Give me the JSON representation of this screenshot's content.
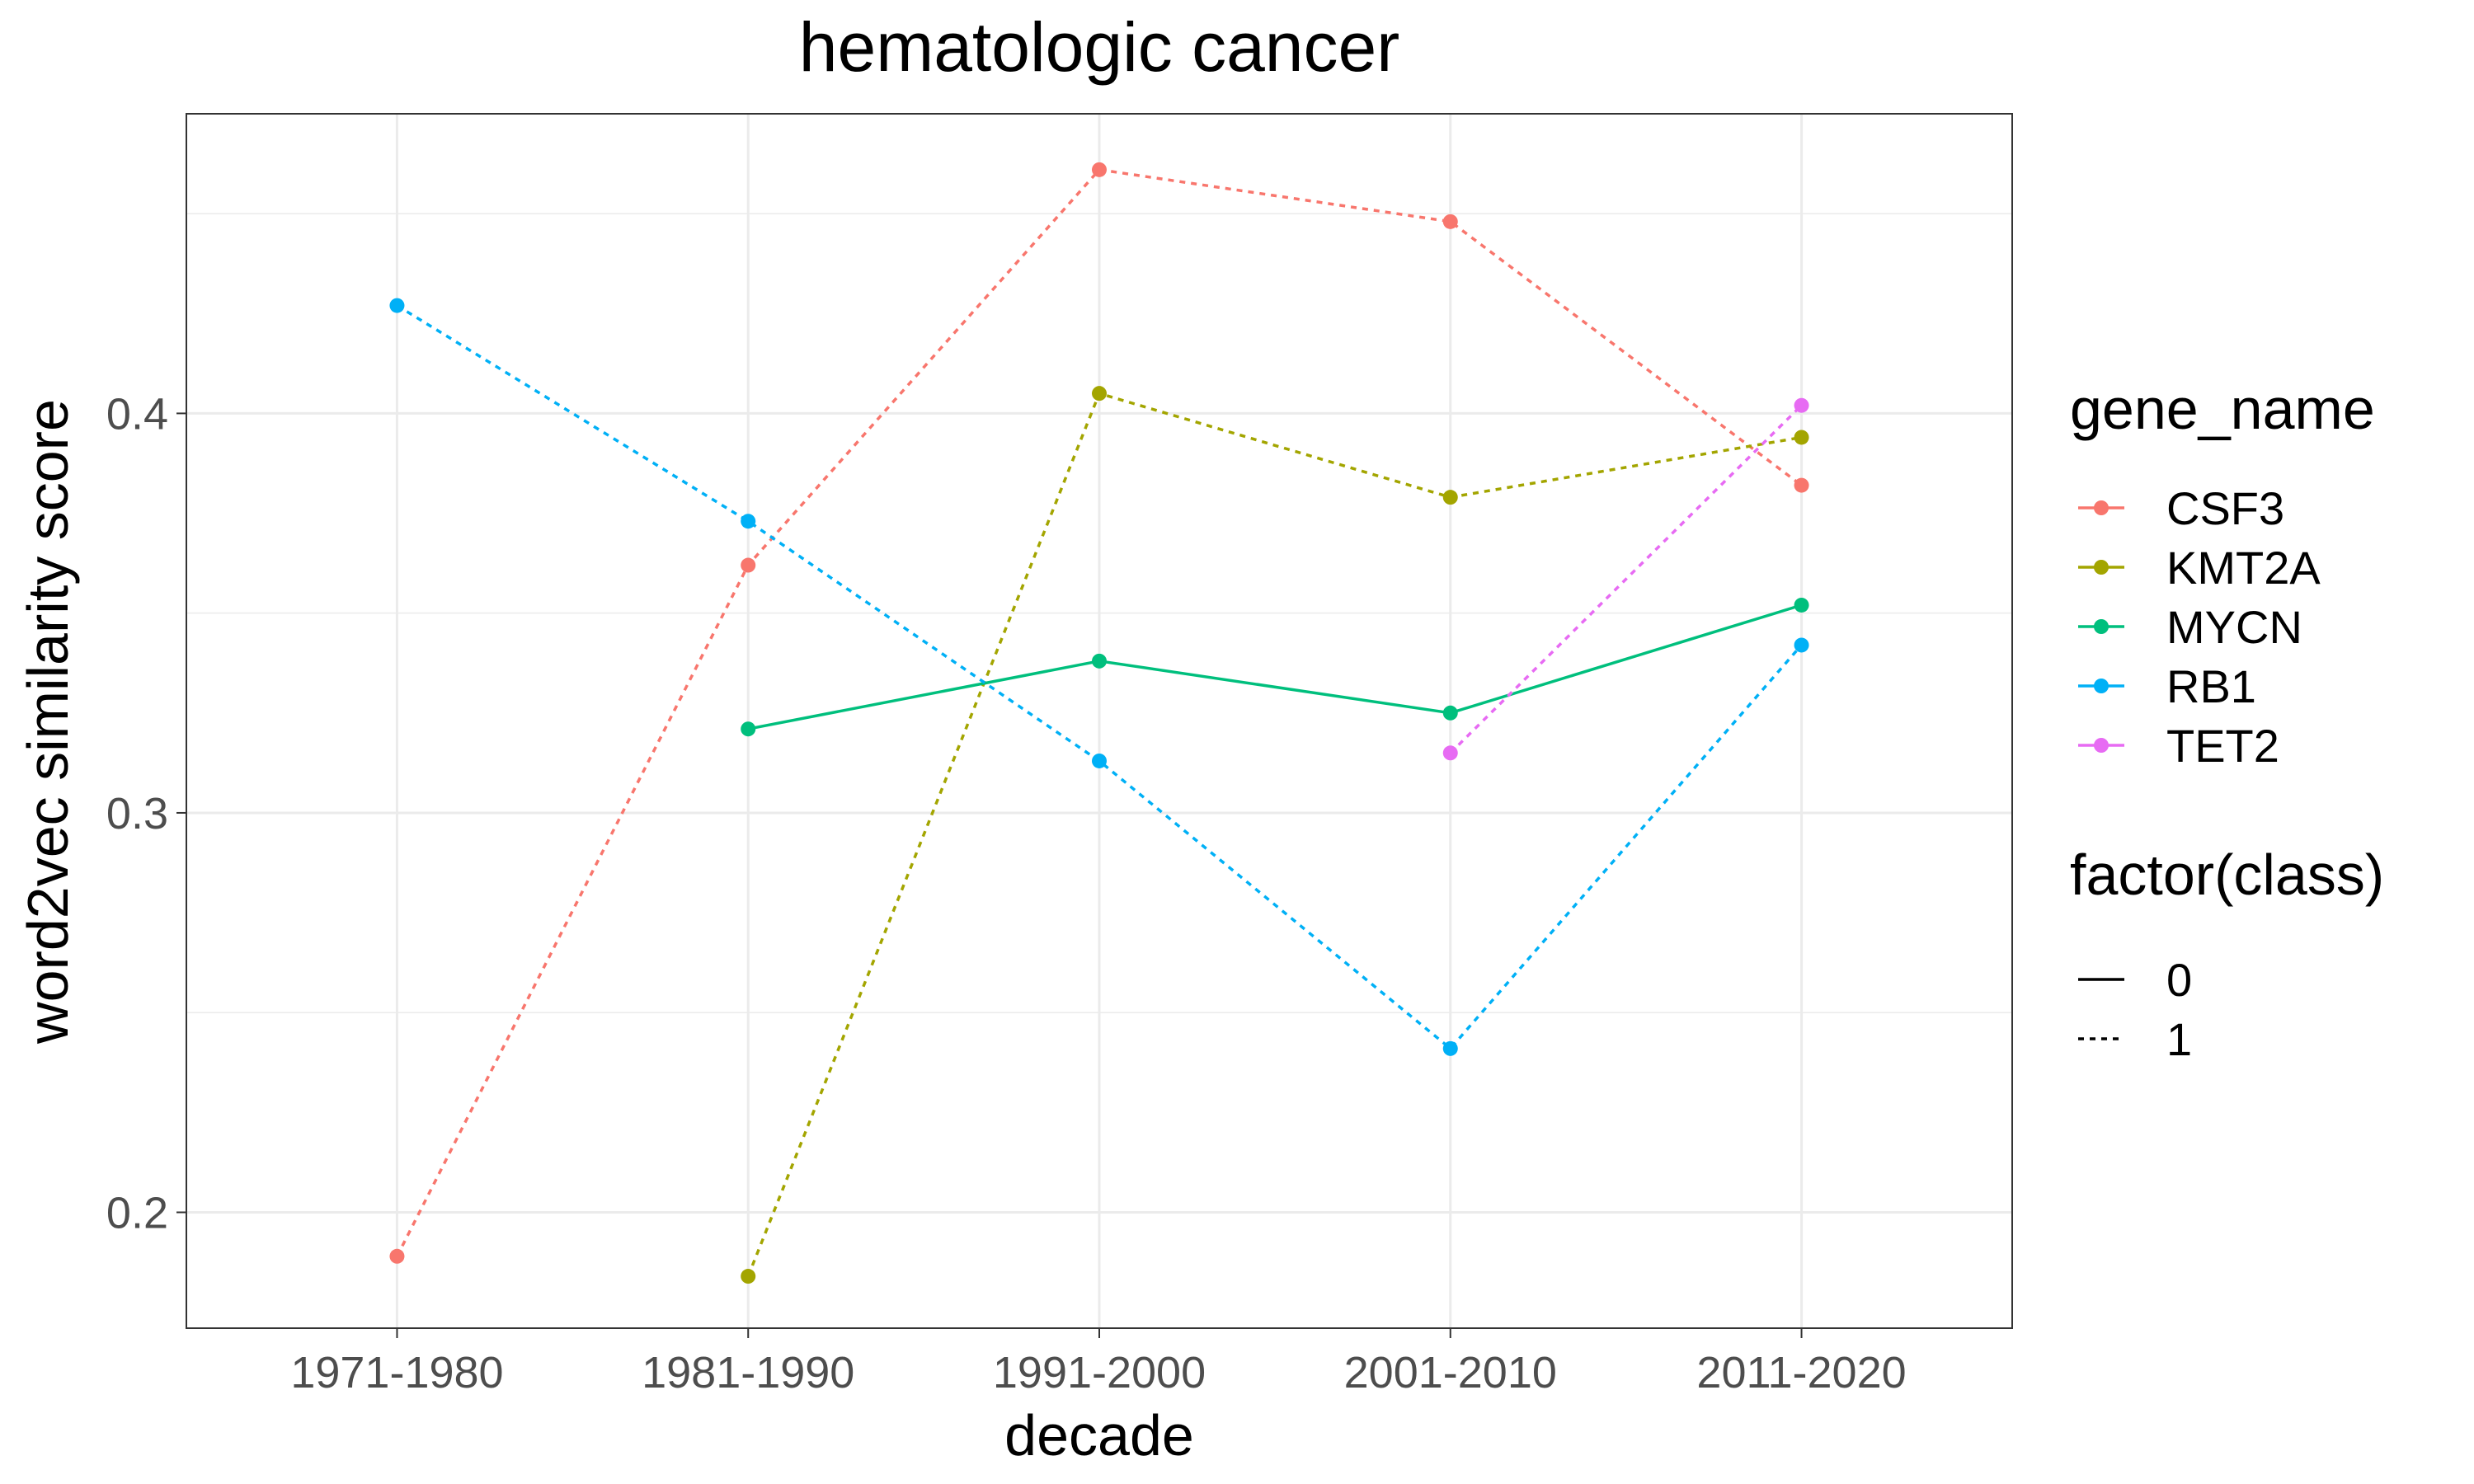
{
  "chart_data": {
    "type": "line",
    "title": "hematologic cancer",
    "xlabel": "decade",
    "ylabel": "word2vec similarity score",
    "categories": [
      "1971-1980",
      "1981-1990",
      "1991-2000",
      "2001-2010",
      "2011-2020"
    ],
    "ylim": [
      0.171,
      0.475
    ],
    "yticks": [
      0.2,
      0.3,
      0.4
    ],
    "ytick_labels": [
      "0.2",
      "0.3",
      "0.4"
    ],
    "grid": true,
    "legend_position": "right",
    "legend_color_title": "gene_name",
    "legend_linetype_title": "factor(class)",
    "linetype_entries": [
      {
        "label": "0",
        "style": "solid"
      },
      {
        "label": "1",
        "style": "dotted"
      }
    ],
    "series": [
      {
        "name": "CSF3",
        "color": "#F8766D",
        "class": "1",
        "values": [
          0.189,
          0.362,
          0.461,
          0.448,
          0.382
        ]
      },
      {
        "name": "KMT2A",
        "color": "#A3A500",
        "class": "1",
        "values": [
          null,
          0.184,
          0.405,
          0.379,
          0.394
        ]
      },
      {
        "name": "MYCN",
        "color": "#00BF7D",
        "class": "0",
        "values": [
          null,
          0.321,
          0.338,
          0.325,
          0.352
        ]
      },
      {
        "name": "RB1",
        "color": "#00B0F6",
        "class": "1",
        "values": [
          0.427,
          0.373,
          0.313,
          0.241,
          0.342
        ]
      },
      {
        "name": "TET2",
        "color": "#E76BF3",
        "class": "1",
        "values": [
          null,
          null,
          null,
          0.315,
          0.402
        ]
      }
    ]
  }
}
